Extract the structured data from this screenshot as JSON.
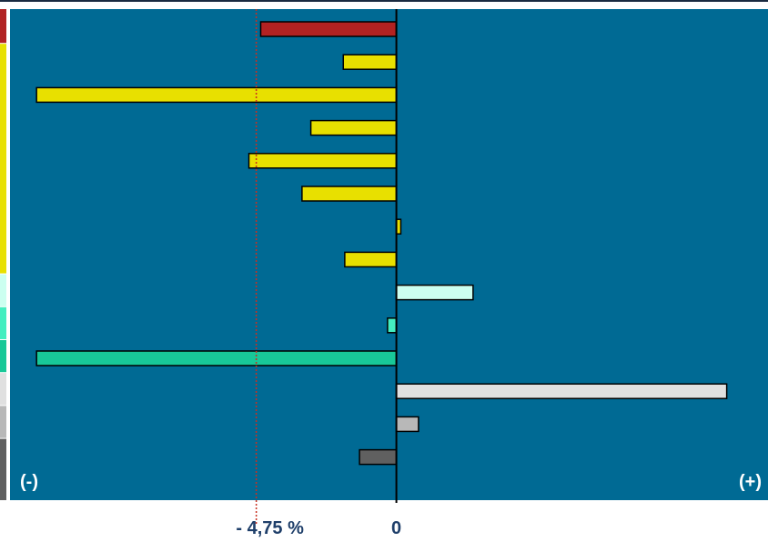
{
  "chart_data": {
    "type": "bar",
    "orientation": "horizontal",
    "categories": [
      "",
      "",
      "",
      "",
      "",
      "",
      "",
      "",
      "",
      "",
      "",
      "",
      "",
      ""
    ],
    "values": [
      -4.6,
      -1.8,
      -12.2,
      -2.9,
      -5.0,
      -3.2,
      0.15,
      -1.75,
      2.6,
      -0.3,
      -12.2,
      11.2,
      0.75,
      -1.25
    ],
    "bar_colors": [
      "#b22222",
      "#e8e000",
      "#e8e000",
      "#e8e000",
      "#e8e000",
      "#e8e000",
      "#e8e000",
      "#e8e000",
      "#ccfff0",
      "#44eec0",
      "#18c898",
      "#e0e0e0",
      "#b8b8b8",
      "#606060"
    ],
    "group_strips": [
      {
        "color": "#b22222",
        "from": 0,
        "to": 0
      },
      {
        "color": "#e8e000",
        "from": 1,
        "to": 7
      },
      {
        "color": "#ccfff0",
        "from": 8,
        "to": 8
      },
      {
        "color": "#44eec0",
        "from": 9,
        "to": 9
      },
      {
        "color": "#18c898",
        "from": 10,
        "to": 10
      },
      {
        "color": "#e0e0e0",
        "from": 11,
        "to": 11
      },
      {
        "color": "#b8b8b8",
        "from": 12,
        "to": 12
      },
      {
        "color": "#606060",
        "from": 13,
        "to": 13
      }
    ],
    "xlim": [
      -13.1,
      12.6
    ],
    "reference_line": {
      "value": -4.75,
      "label": "- 4,75 %",
      "color": "#c83020",
      "style": "dotted"
    },
    "zero_label": "0",
    "negative_label": "(-)",
    "positive_label": "(+)",
    "plot_background": "#006a94",
    "label_color": "#1f3f6a",
    "grid": false
  }
}
